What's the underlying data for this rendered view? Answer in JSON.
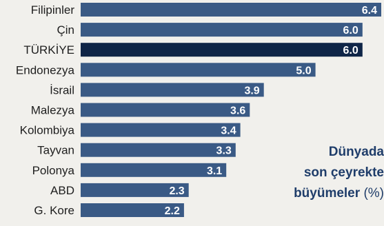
{
  "colors": {
    "bar": "#3a5a85",
    "highlight_bar": "#0f2547",
    "label_text": "#1e1e1e",
    "value_text": "#ffffff",
    "title_text": "#1f3d6a",
    "background": "#f1f0ec"
  },
  "caption": {
    "line1": "Dünyada",
    "line2": "son çeyrekte",
    "line3": "büyümeler",
    "unit": "(%)"
  },
  "chart_data": {
    "type": "bar",
    "orientation": "horizontal",
    "title": "Dünyada son çeyrekte büyümeler (%)",
    "categories": [
      "Filipinler",
      "Çin",
      "TÜRKİYE",
      "Endonezya",
      "İsrail",
      "Malezya",
      "Kolombiya",
      "Tayvan",
      "Polonya",
      "ABD",
      "G. Kore"
    ],
    "values": [
      6.4,
      6.0,
      6.0,
      5.0,
      3.9,
      3.6,
      3.4,
      3.3,
      3.1,
      2.3,
      2.2
    ],
    "value_labels": [
      "6.4",
      "6.0",
      "6.0",
      "5.0",
      "3.9",
      "3.6",
      "3.4",
      "3.3",
      "3.1",
      "2.3",
      "2.2"
    ],
    "highlight": "TÜRKİYE",
    "xlim": [
      0,
      6.4
    ],
    "grid": false,
    "legend": "none"
  }
}
